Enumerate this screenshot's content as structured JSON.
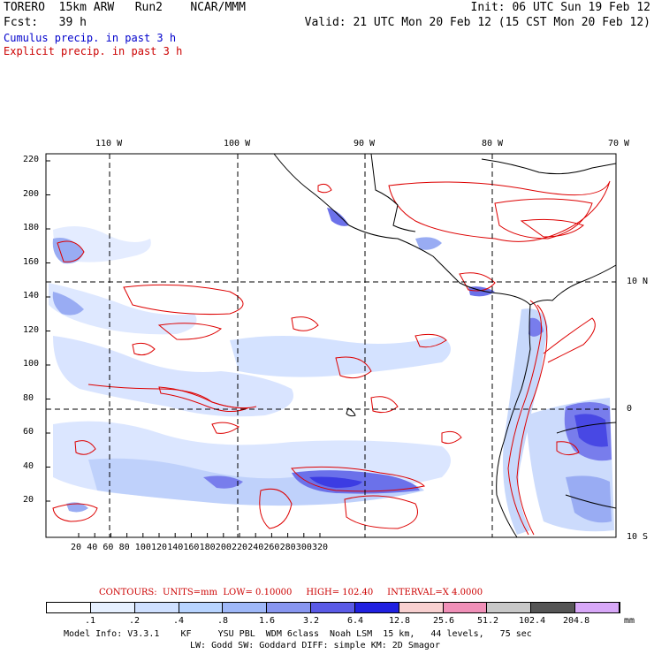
{
  "header": {
    "model": "TORERO  15km ARW   Run2    NCAR/MMM",
    "init": "Init: 06 UTC Sun 19 Feb 12",
    "fcst": "Fcst:   39 h",
    "valid": "Valid: 21 UTC Mon 20 Feb 12 (15 CST Mon 20 Feb 12)",
    "cumulus": "Cumulus precip. in past 3 h",
    "explicit": "Explicit precip. in past 3 h"
  },
  "colors": {
    "cumulus_text": "#0000cc",
    "explicit_text": "#cc0000",
    "contour": "#dd0000"
  },
  "map": {
    "top_lon_labels": [
      "110 W",
      "100 W",
      "90 W",
      "80 W",
      "70 W"
    ],
    "right_lat_labels": [
      "10 N",
      "0",
      "10 S"
    ],
    "y_ticks": [
      "220",
      "200",
      "180",
      "160",
      "140",
      "120",
      "100",
      "80",
      "60",
      "40",
      "20"
    ],
    "x_ticks": [
      "20",
      "40",
      "60",
      "80",
      "100",
      "120",
      "140",
      "160",
      "180",
      "200",
      "220",
      "240",
      "260",
      "280",
      "300",
      "320"
    ]
  },
  "contours_line": {
    "label": "CONTOURS:",
    "units": "UNITS=mm",
    "low": "LOW= 0.10000",
    "high": "HIGH= 102.40",
    "interval": "INTERVAL=X 4.0000"
  },
  "colorbar": {
    "labels": [
      ".1",
      ".2",
      ".4",
      ".8",
      "1.6",
      "3.2",
      "6.4",
      "12.8",
      "25.6",
      "51.2",
      "102.4",
      "204.8"
    ],
    "units": "mm",
    "colors": [
      "#ffffff",
      "#e6f0ff",
      "#cfe0ff",
      "#b8d4ff",
      "#9fb8f8",
      "#8896f0",
      "#5a5ae6",
      "#2020e0",
      "#f8d0d0",
      "#f090b8",
      "#c8c8c8",
      "#555555",
      "#d8a8f8"
    ]
  },
  "model_info": {
    "line1": "Model Info: V3.3.1    KF     YSU PBL  WDM 6class  Noah LSM  15 km,   44 levels,   75 sec",
    "line2": "LW: Godd SW: Goddard DIFF: simple KM: 2D Smagor"
  }
}
